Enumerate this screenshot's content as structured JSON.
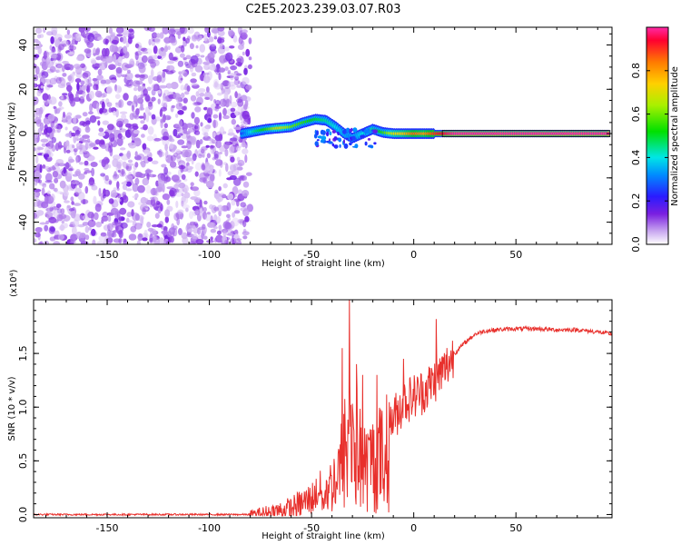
{
  "title": "C2E5.2023.239.03.07.R03",
  "chart_data": [
    {
      "type": "heatmap",
      "name": "spectrogram",
      "xlabel": "Height of straight line (km)",
      "ylabel": "Frequency (Hz)",
      "xlim": [
        -186,
        97
      ],
      "ylim": [
        -50,
        48
      ],
      "xticks": [
        -150,
        -100,
        -50,
        0,
        50
      ],
      "yticks": [
        -40,
        -20,
        0,
        20,
        40
      ],
      "colorbar": {
        "label": "Normalized spectral amplitude",
        "range": [
          0.0,
          1.0
        ],
        "ticks": [
          0.0,
          0.2,
          0.4,
          0.6,
          0.8
        ],
        "tick_labels": [
          "0.0",
          "0.2",
          "0.4",
          "0.6",
          "0.8"
        ]
      },
      "noise_region": {
        "x_from": -186,
        "x_to": -80,
        "level_range": [
          0.03,
          0.15
        ]
      },
      "signal_track": [
        {
          "x": -84,
          "f": 0.0,
          "amp": 0.25
        },
        {
          "x": -78,
          "f": 1.0,
          "amp": 0.45
        },
        {
          "x": -72,
          "f": 2.0,
          "amp": 0.55
        },
        {
          "x": -66,
          "f": 2.5,
          "amp": 0.7
        },
        {
          "x": -60,
          "f": 3.0,
          "amp": 0.6
        },
        {
          "x": -54,
          "f": 5.0,
          "amp": 0.55
        },
        {
          "x": -48,
          "f": 6.5,
          "amp": 0.5
        },
        {
          "x": -43,
          "f": 6.0,
          "amp": 0.45
        },
        {
          "x": -38,
          "f": 3.0,
          "amp": 0.4
        },
        {
          "x": -34,
          "f": 0.0,
          "amp": 0.35
        },
        {
          "x": -30,
          "f": -2.0,
          "amp": 0.3
        },
        {
          "x": -25,
          "f": 0.0,
          "amp": 0.4
        },
        {
          "x": -20,
          "f": 2.0,
          "amp": 0.45
        },
        {
          "x": -15,
          "f": 0.5,
          "amp": 0.55
        },
        {
          "x": -10,
          "f": 0.0,
          "amp": 0.7
        },
        {
          "x": -5,
          "f": 0.0,
          "amp": 0.75
        },
        {
          "x": 0,
          "f": 0.0,
          "amp": 0.85
        },
        {
          "x": 5,
          "f": 0.0,
          "amp": 0.8
        },
        {
          "x": 10,
          "f": 0.0,
          "amp": 0.9
        },
        {
          "x": 20,
          "f": 0.0,
          "amp": 1.0
        },
        {
          "x": 50,
          "f": 0.0,
          "amp": 1.0
        },
        {
          "x": 96,
          "f": 0.0,
          "amp": 1.0
        }
      ]
    },
    {
      "type": "line",
      "name": "snr",
      "xlabel": "Height of straight line (km)",
      "ylabel": "SNR (10 * v/v)",
      "y_multiplier_label": "(x10⁴)",
      "xlim": [
        -186,
        97
      ],
      "ylim": [
        -0.03,
        2.0
      ],
      "xticks": [
        -150,
        -100,
        -50,
        0,
        50
      ],
      "yticks": [
        0.0,
        0.5,
        1.0,
        1.5
      ],
      "ytick_labels": [
        "0.0",
        "0.5",
        "1.0",
        "1.5"
      ],
      "series": [
        {
          "name": "SNR",
          "color": "#e8302c",
          "x": [
            -186,
            -150,
            -100,
            -80,
            -70,
            -60,
            -55,
            -50,
            -45,
            -40,
            -36,
            -33,
            -30,
            -27,
            -24,
            -20,
            -16,
            -12,
            -8,
            -5,
            0,
            5,
            10,
            15,
            20,
            25,
            30,
            35,
            40,
            50,
            60,
            70,
            80,
            90,
            97
          ],
          "y": [
            0.0,
            0.0,
            0.0,
            0.0,
            0.02,
            0.05,
            0.1,
            0.15,
            0.25,
            0.4,
            0.6,
            0.9,
            1.1,
            0.8,
            0.6,
            0.7,
            0.75,
            0.85,
            0.95,
            1.05,
            1.1,
            1.15,
            1.25,
            1.35,
            1.5,
            1.6,
            1.68,
            1.71,
            1.72,
            1.73,
            1.73,
            1.72,
            1.72,
            1.7,
            1.68
          ],
          "spikes": [
            {
              "x": -31.5,
              "y": 2.0
            },
            {
              "x": -35,
              "y": 1.55
            },
            {
              "x": -28,
              "y": 1.4
            },
            {
              "x": -25,
              "y": 1.3
            },
            {
              "x": -18,
              "y": 1.3
            },
            {
              "x": 11,
              "y": 1.82
            },
            {
              "x": -5,
              "y": 1.45
            }
          ]
        }
      ]
    }
  ]
}
